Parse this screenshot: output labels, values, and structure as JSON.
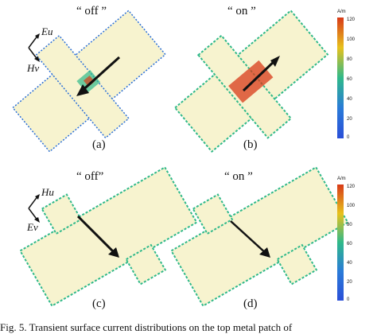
{
  "panels": [
    {
      "label": "(a)",
      "state": "“ off ”"
    },
    {
      "label": "(b)",
      "state": "“ on ”"
    },
    {
      "label": "(c)",
      "state": "“ off”"
    },
    {
      "label": "(d)",
      "state": "“ on ”"
    }
  ],
  "axes_top": {
    "e": "Eu",
    "h": "Hv"
  },
  "axes_bottom": {
    "h": "Hu",
    "e": "Ev"
  },
  "colorbar": {
    "unit": "A/m",
    "ticks": [
      "120",
      "100",
      "80",
      "60",
      "40",
      "20",
      "0"
    ]
  },
  "caption": "Fig. 5.   Transient surface current distributions on the top metal patch of",
  "colors": {
    "patch": "#f7f3cf",
    "low": "#2a4fd8",
    "mid": "#2fb98a",
    "high": "#d83a18"
  }
}
